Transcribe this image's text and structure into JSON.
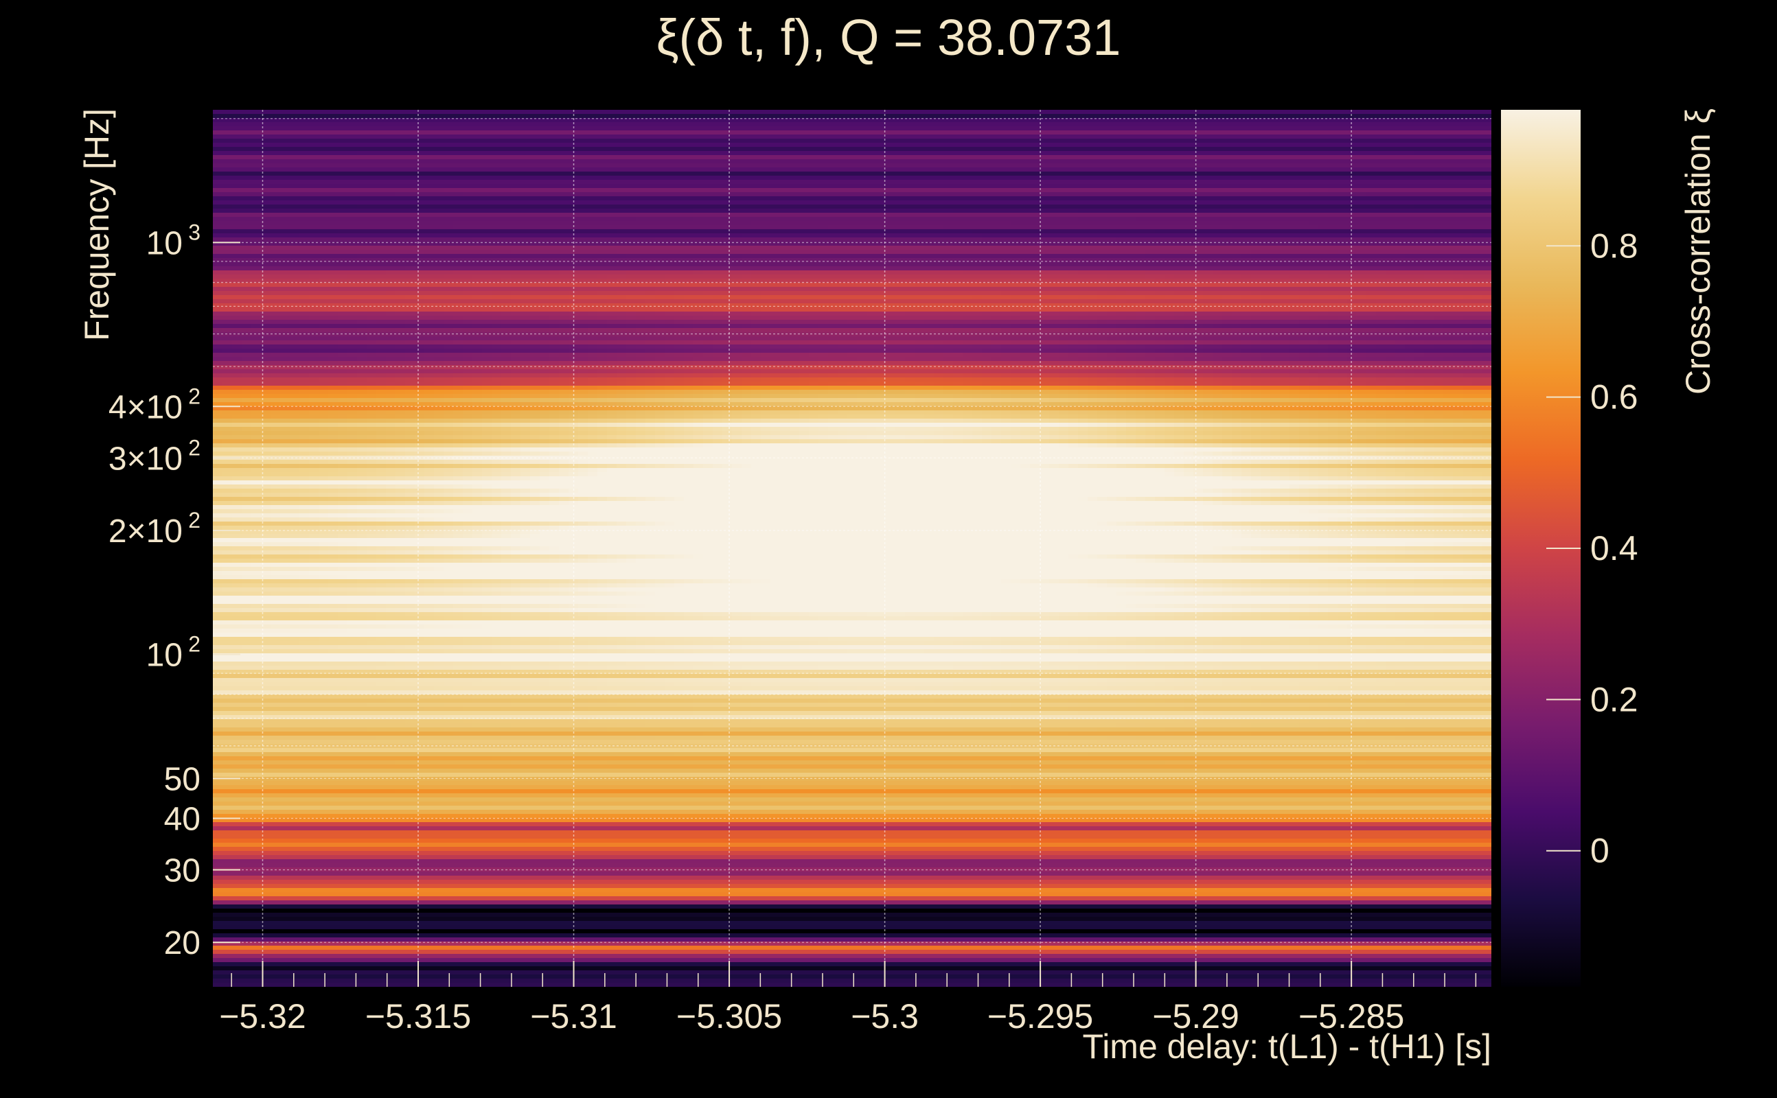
{
  "chart_data": {
    "type": "heatmap",
    "title": "ξ(δ t, f), Q = 38.0731",
    "xlabel": "Time delay: t(L1) - t(H1) [s]",
    "ylabel": "Frequency [Hz]",
    "colorbar_label": "Cross-correlation ξ",
    "x_range": [
      -5.3216,
      -5.2805
    ],
    "y_range": [
      15.6,
      2100
    ],
    "y_scale": "log",
    "grid": true,
    "x_ticks": [
      -5.32,
      -5.315,
      -5.31,
      -5.305,
      -5.3,
      -5.295,
      -5.29,
      -5.285
    ],
    "x_tick_labels": [
      "−5.32",
      "−5.315",
      "−5.31",
      "−5.305",
      "−5.3",
      "−5.295",
      "−5.29",
      "−5.285"
    ],
    "y_ticks": [
      {
        "value": 1000,
        "label": "10",
        "sup": "3"
      },
      {
        "value": 400,
        "label": "4×10",
        "sup": "2"
      },
      {
        "value": 300,
        "label": "3×10",
        "sup": "2"
      },
      {
        "value": 200,
        "label": "2×10",
        "sup": "2"
      },
      {
        "value": 100,
        "label": "10",
        "sup": "2"
      },
      {
        "value": 50,
        "label": "50",
        "sup": ""
      },
      {
        "value": 40,
        "label": "40",
        "sup": ""
      },
      {
        "value": 30,
        "label": "30",
        "sup": ""
      },
      {
        "value": 20,
        "label": "20",
        "sup": ""
      }
    ],
    "colorbar_range": [
      -0.18,
      0.98
    ],
    "colorbar_ticks": [
      0,
      0.2,
      0.4,
      0.6,
      0.8
    ],
    "colormap": [
      "#000004",
      "#1b0c41",
      "#4a0c6b",
      "#781c6d",
      "#a52c60",
      "#cf4446",
      "#ed6925",
      "#f3962a",
      "#e9b85a",
      "#f2d58f",
      "#f8f1e3"
    ],
    "band_profile": [
      {
        "f": 2100,
        "xi": 0.05
      },
      {
        "f": 1600,
        "xi": 0.08
      },
      {
        "f": 1200,
        "xi": 0.07
      },
      {
        "f": 900,
        "xi": 0.15
      },
      {
        "f": 750,
        "xi": 0.42
      },
      {
        "f": 600,
        "xi": 0.12
      },
      {
        "f": 500,
        "xi": 0.2
      },
      {
        "f": 420,
        "xi": 0.62
      },
      {
        "f": 300,
        "xi": 0.85
      },
      {
        "f": 200,
        "xi": 0.9
      },
      {
        "f": 100,
        "xi": 0.93
      },
      {
        "f": 70,
        "xi": 0.82
      },
      {
        "f": 50,
        "xi": 0.72
      },
      {
        "f": 40,
        "xi": 0.7
      },
      {
        "f": 38,
        "xi": 0.3
      },
      {
        "f": 34,
        "xi": 0.62
      },
      {
        "f": 31,
        "xi": 0.1
      },
      {
        "f": 28,
        "xi": 0.45
      },
      {
        "f": 26,
        "xi": 0.55
      },
      {
        "f": 24,
        "xi": -0.15
      },
      {
        "f": 21,
        "xi": -0.12
      },
      {
        "f": 19.5,
        "xi": 0.5
      },
      {
        "f": 17.5,
        "xi": -0.05
      },
      {
        "f": 15.6,
        "xi": -0.1
      }
    ],
    "peak": {
      "t": -5.3,
      "f": 250,
      "xi": 0.98
    }
  }
}
